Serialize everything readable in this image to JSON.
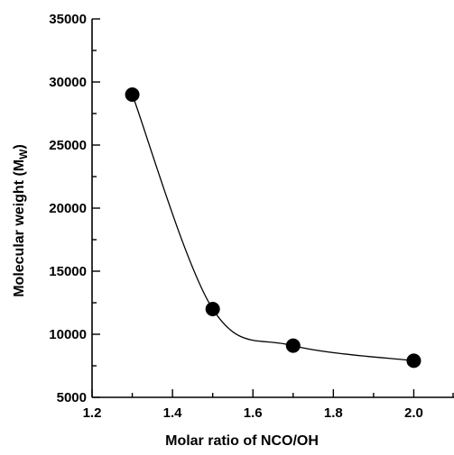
{
  "chart_data": {
    "type": "scatter",
    "title": "",
    "xlabel": "Molar ratio of NCO/OH",
    "ylabel_main": "Molecular weight (M",
    "ylabel_sub": "W",
    "ylabel_close": ")",
    "xlim": [
      1.2,
      2.1
    ],
    "ylim": [
      5000,
      35000
    ],
    "x_ticks": [
      1.2,
      1.4,
      1.6,
      1.8,
      2.0
    ],
    "x_tick_labels": [
      "1.2",
      "1.4",
      "1.6",
      "1.8",
      "2.0"
    ],
    "y_ticks": [
      5000,
      10000,
      15000,
      20000,
      25000,
      30000,
      35000
    ],
    "y_tick_labels": [
      "5000",
      "10000",
      "15000",
      "20000",
      "25000",
      "30000",
      "35000"
    ],
    "grid": false,
    "series": [
      {
        "x": [
          1.3,
          1.5,
          1.7,
          2.0
        ],
        "y": [
          29000,
          12000,
          9100,
          7900
        ],
        "marker": "filled-circle",
        "line": "smooth",
        "color": "#000000"
      }
    ]
  }
}
